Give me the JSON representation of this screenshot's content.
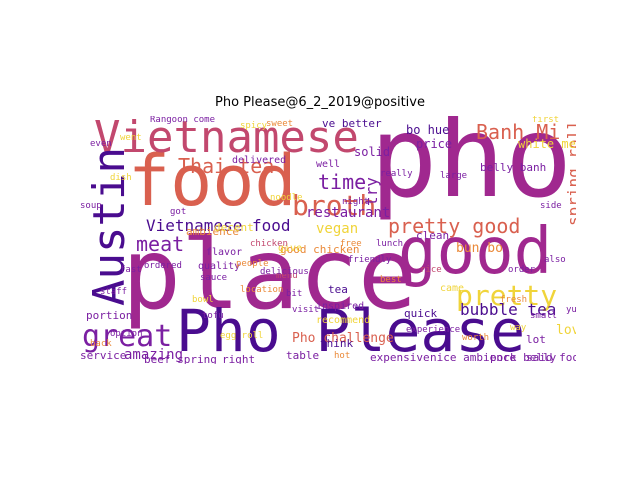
{
  "title": "Pho Please@6_2_2019@positive",
  "palette": {
    "deep_purple": "#4a0c8f",
    "purple": "#7b1fa2",
    "magenta": "#a0288f",
    "rose": "#c2486e",
    "coral": "#d9604f",
    "orange": "#ea8a3a",
    "yellow": "#f0d43a"
  },
  "words": [
    {
      "text": "pho",
      "color": "#a0288f"
    },
    {
      "text": "place",
      "color": "#a0288f"
    },
    {
      "text": "food",
      "color": "#d9604f"
    },
    {
      "text": "Pho Please",
      "color": "#4a0c8f"
    },
    {
      "text": "good",
      "color": "#a0288f"
    },
    {
      "text": "Vietnamese",
      "color": "#c2486e"
    },
    {
      "text": "Austin",
      "color": "#4a0c8f"
    },
    {
      "text": "broth",
      "color": "#d9604f"
    },
    {
      "text": "great",
      "color": "#7b1fa2"
    },
    {
      "text": "pretty",
      "color": "#f0d43a"
    },
    {
      "text": "pretty good",
      "color": "#d9604f"
    },
    {
      "text": "Banh Mi",
      "color": "#d9604f"
    },
    {
      "text": "Thai tea",
      "color": "#d9604f"
    },
    {
      "text": "time",
      "color": "#7b1fa2"
    },
    {
      "text": "Vietnamese food",
      "color": "#4a0c8f"
    },
    {
      "text": "meat",
      "color": "#7b1fa2"
    },
    {
      "text": "restaurant",
      "color": "#7b1fa2"
    },
    {
      "text": "spring roll",
      "color": "#d9604f"
    },
    {
      "text": "bubble tea",
      "color": "#4a0c8f"
    },
    {
      "text": "Pho challenge",
      "color": "#d9604f"
    },
    {
      "text": "amazing",
      "color": "#7b1fa2"
    },
    {
      "text": "white meat",
      "color": "#f0d43a"
    },
    {
      "text": "try",
      "color": "#7b1fa2"
    },
    {
      "text": "vegan",
      "color": "#f0d43a"
    },
    {
      "text": "solid",
      "color": "#7b1fa2"
    },
    {
      "text": "bun bo",
      "color": "#ea8a3a"
    },
    {
      "text": "bo hue",
      "color": "#4a0c8f"
    },
    {
      "text": "price",
      "color": "#7b1fa2"
    },
    {
      "text": "clean",
      "color": "#7b1fa2"
    },
    {
      "text": "quick",
      "color": "#4a0c8f"
    },
    {
      "text": "service",
      "color": "#7b1fa2"
    },
    {
      "text": "portion",
      "color": "#7b1fa2"
    },
    {
      "text": "love",
      "color": "#f0d43a"
    },
    {
      "text": "beef spring",
      "color": "#7b1fa2"
    },
    {
      "text": "right",
      "color": "#7b1fa2"
    },
    {
      "text": "table",
      "color": "#7b1fa2"
    },
    {
      "text": "think",
      "color": "#4a0c8f"
    },
    {
      "text": "expensive",
      "color": "#7b1fa2"
    },
    {
      "text": "nice ambience",
      "color": "#7b1fa2"
    },
    {
      "text": "pork belly",
      "color": "#7b1fa2"
    },
    {
      "text": "said food",
      "color": "#7b1fa2"
    },
    {
      "text": "lot",
      "color": "#7b1fa2"
    },
    {
      "text": "tea",
      "color": "#4a0c8f"
    },
    {
      "text": "good chicken",
      "color": "#ea8a3a"
    },
    {
      "text": "ambience",
      "color": "#ea8a3a"
    },
    {
      "text": "decent",
      "color": "#f0d43a"
    },
    {
      "text": "flavor",
      "color": "#7b1fa2"
    },
    {
      "text": "quality",
      "color": "#7b1fa2"
    },
    {
      "text": "ve better",
      "color": "#4a0c8f"
    },
    {
      "text": "well",
      "color": "#7b1fa2"
    },
    {
      "text": "belly banh",
      "color": "#7b1fa2"
    },
    {
      "text": "inspired",
      "color": "#7b1fa2"
    },
    {
      "text": "recommend",
      "color": "#f0d43a"
    },
    {
      "text": "delivered",
      "color": "#7b1fa2"
    },
    {
      "text": "give",
      "color": "#f0d43a"
    },
    {
      "text": "Rangoon come",
      "color": "#7b1fa2"
    },
    {
      "text": "came",
      "color": "#f0d43a"
    },
    {
      "text": "yummy",
      "color": "#7b1fa2"
    },
    {
      "text": "even",
      "color": "#7b1fa2"
    },
    {
      "text": "option",
      "color": "#7b1fa2"
    },
    {
      "text": "spicy",
      "color": "#f0d43a"
    },
    {
      "text": "back",
      "color": "#ea8a3a"
    },
    {
      "text": "best",
      "color": "#ea8a3a"
    },
    {
      "text": "menu",
      "color": "#c2486e"
    },
    {
      "text": "ordered",
      "color": "#7b1fa2"
    },
    {
      "text": "fresh",
      "color": "#ea8a3a"
    },
    {
      "text": "staff",
      "color": "#7b1fa2"
    },
    {
      "text": "noodle",
      "color": "#f0d43a"
    },
    {
      "text": "sauce",
      "color": "#7b1fa2"
    },
    {
      "text": "rice",
      "color": "#c2486e"
    },
    {
      "text": "small",
      "color": "#7b1fa2"
    },
    {
      "text": "friendly",
      "color": "#7b1fa2"
    },
    {
      "text": "location",
      "color": "#ea8a3a"
    },
    {
      "text": "lunch",
      "color": "#7b1fa2"
    },
    {
      "text": "dish",
      "color": "#f0d43a"
    },
    {
      "text": "side",
      "color": "#7b1fa2"
    },
    {
      "text": "bowl",
      "color": "#f0d43a"
    },
    {
      "text": "order",
      "color": "#7b1fa2"
    },
    {
      "text": "chicken",
      "color": "#c2486e"
    },
    {
      "text": "soup",
      "color": "#7b1fa2"
    },
    {
      "text": "hot",
      "color": "#ea8a3a"
    },
    {
      "text": "really",
      "color": "#7b1fa2"
    },
    {
      "text": "first",
      "color": "#f0d43a"
    },
    {
      "text": "delicious",
      "color": "#7b1fa2"
    },
    {
      "text": "worth",
      "color": "#ea8a3a"
    },
    {
      "text": "experience",
      "color": "#7b1fa2"
    },
    {
      "text": "egg roll",
      "color": "#f0d43a"
    },
    {
      "text": "bit",
      "color": "#7b1fa2"
    },
    {
      "text": "free",
      "color": "#ea8a3a"
    },
    {
      "text": "fast",
      "color": "#7b1fa2"
    },
    {
      "text": "also",
      "color": "#7b1fa2"
    },
    {
      "text": "way",
      "color": "#f0d43a"
    },
    {
      "text": "tofu",
      "color": "#7b1fa2"
    },
    {
      "text": "sweet",
      "color": "#ea8a3a"
    },
    {
      "text": "got",
      "color": "#7b1fa2"
    },
    {
      "text": "large",
      "color": "#7b1fa2"
    },
    {
      "text": "went",
      "color": "#f0d43a"
    },
    {
      "text": "night",
      "color": "#7b1fa2"
    },
    {
      "text": "people",
      "color": "#ea8a3a"
    },
    {
      "text": "visit",
      "color": "#7b1fa2"
    }
  ]
}
